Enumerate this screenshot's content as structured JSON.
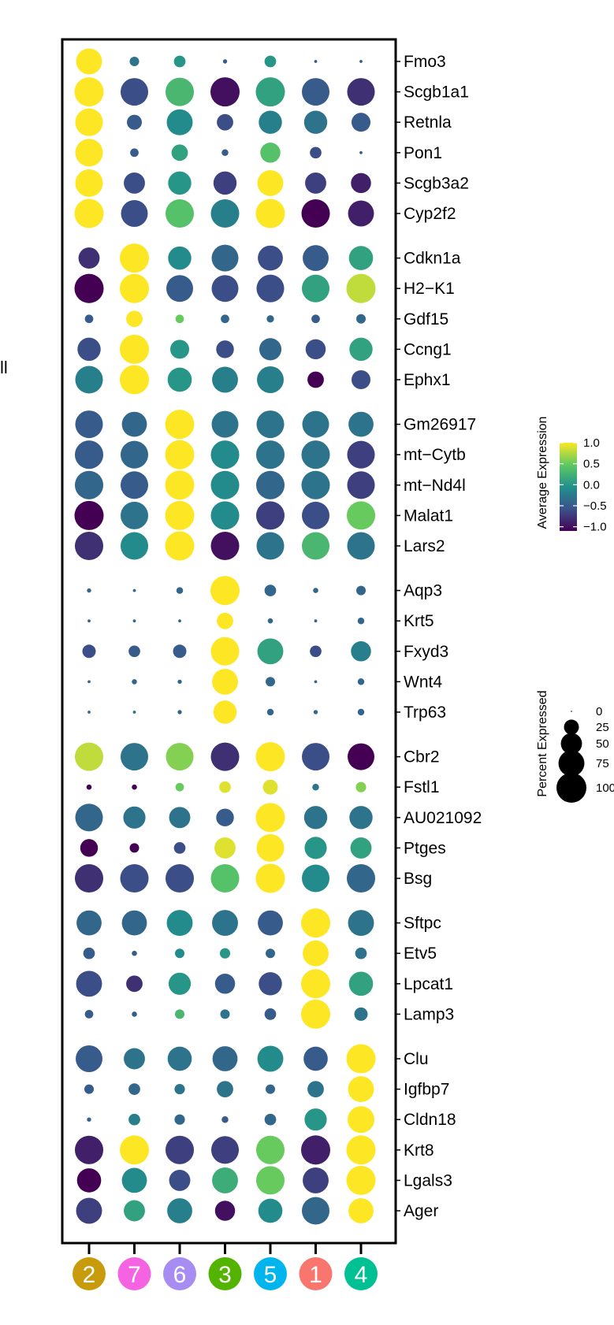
{
  "chart_data": {
    "type": "dotplot",
    "clusters": [
      {
        "label": "2",
        "color": "#c89b0c"
      },
      {
        "label": "7",
        "color": "#f563e3"
      },
      {
        "label": "6",
        "color": "#a78cf2"
      },
      {
        "label": "3",
        "color": "#53b400"
      },
      {
        "label": "5",
        "color": "#00b5ee"
      },
      {
        "label": "1",
        "color": "#f8766d"
      },
      {
        "label": "4",
        "color": "#00c094"
      }
    ],
    "genes": [
      "Fmo3",
      "Scgb1a1",
      "Retnla",
      "Pon1",
      "Scgb3a2",
      "Cyp2f2",
      "Cdkn1a",
      "H2−K1",
      "Gdf15",
      "Ccng1",
      "Ephx1",
      "Gm26917",
      "mt−Cytb",
      "mt−Nd4l",
      "Malat1",
      "Lars2",
      "Aqp3",
      "Krt5",
      "Fxyd3",
      "Wnt4",
      "Trp63",
      "Cbr2",
      "Fstl1",
      "AU021092",
      "Ptges",
      "Bsg",
      "Sftpc",
      "Etv5",
      "Lpcat1",
      "Lamp3",
      "Clu",
      "Igfbp7",
      "Cldn18",
      "Krt8",
      "Lgals3",
      "Ager"
    ],
    "groups": [
      6,
      5,
      5,
      5,
      5,
      4,
      6
    ],
    "avg_expression": [
      [
        1.0,
        -0.3,
        0.0,
        -0.5,
        0.0,
        -0.5,
        -0.5
      ],
      [
        1.0,
        -0.6,
        0.3,
        -1.0,
        0.1,
        -0.5,
        -0.8
      ],
      [
        1.0,
        -0.5,
        -0.1,
        -0.6,
        -0.2,
        -0.3,
        -0.5
      ],
      [
        1.0,
        -0.5,
        0.1,
        -0.5,
        0.4,
        -0.6,
        -0.5
      ],
      [
        1.0,
        -0.6,
        0.0,
        -0.7,
        1.0,
        -0.7,
        -0.9
      ],
      [
        1.0,
        -0.6,
        0.4,
        -0.2,
        1.0,
        -1.1,
        -0.9
      ],
      [
        -0.8,
        1.0,
        -0.1,
        -0.4,
        -0.6,
        -0.5,
        0.1
      ],
      [
        -1.1,
        1.0,
        -0.5,
        -0.6,
        -0.6,
        0.1,
        0.8
      ],
      [
        -0.5,
        1.0,
        0.5,
        -0.4,
        -0.4,
        -0.5,
        -0.4
      ],
      [
        -0.6,
        1.0,
        0.0,
        -0.6,
        -0.4,
        -0.6,
        0.1
      ],
      [
        -0.2,
        1.0,
        0.0,
        -0.2,
        -0.2,
        -1.1,
        -0.6
      ],
      [
        -0.5,
        -0.4,
        1.0,
        -0.3,
        -0.3,
        -0.3,
        -0.3
      ],
      [
        -0.5,
        -0.4,
        1.0,
        -0.1,
        -0.3,
        -0.3,
        -0.7
      ],
      [
        -0.4,
        -0.5,
        1.0,
        -0.1,
        -0.4,
        -0.3,
        -0.7
      ],
      [
        -1.1,
        -0.3,
        1.0,
        -0.1,
        -0.7,
        -0.6,
        0.5
      ],
      [
        -0.8,
        -0.1,
        1.0,
        -1.0,
        -0.3,
        0.3,
        -0.3
      ],
      [
        -0.4,
        -0.4,
        -0.4,
        1.0,
        -0.4,
        -0.4,
        -0.4
      ],
      [
        -0.4,
        -0.4,
        -0.4,
        1.0,
        -0.4,
        -0.4,
        -0.4
      ],
      [
        -0.6,
        -0.5,
        -0.5,
        1.0,
        0.1,
        -0.6,
        -0.2
      ],
      [
        -0.4,
        -0.4,
        -0.4,
        1.0,
        -0.4,
        -0.4,
        -0.4
      ],
      [
        -0.4,
        -0.4,
        -0.4,
        1.0,
        -0.4,
        -0.4,
        -0.4
      ],
      [
        0.8,
        -0.3,
        0.6,
        -0.8,
        1.0,
        -0.6,
        -1.1
      ],
      [
        -1.1,
        -1.1,
        0.5,
        0.9,
        0.9,
        -0.3,
        0.6
      ],
      [
        -0.4,
        -0.3,
        -0.3,
        -0.5,
        1.0,
        -0.3,
        -0.3
      ],
      [
        -1.1,
        -1.1,
        -0.6,
        0.9,
        1.0,
        0.0,
        0.1
      ],
      [
        -0.8,
        -0.6,
        -0.6,
        0.4,
        1.0,
        -0.1,
        -0.4
      ],
      [
        -0.4,
        -0.4,
        -0.1,
        -0.3,
        -0.5,
        1.0,
        -0.3
      ],
      [
        -0.5,
        -0.5,
        -0.1,
        0.0,
        -0.4,
        1.0,
        -0.3
      ],
      [
        -0.6,
        -0.8,
        0.0,
        -0.5,
        -0.6,
        1.0,
        0.1
      ],
      [
        -0.5,
        -0.5,
        0.3,
        -0.3,
        -0.5,
        1.0,
        -0.3
      ],
      [
        -0.5,
        -0.3,
        -0.3,
        -0.4,
        -0.1,
        -0.5,
        1.0
      ],
      [
        -0.5,
        -0.4,
        -0.3,
        -0.3,
        -0.4,
        -0.3,
        1.0
      ],
      [
        -0.4,
        -0.2,
        -0.4,
        -0.5,
        -0.4,
        0.0,
        1.0
      ],
      [
        -0.9,
        1.0,
        -0.7,
        -0.7,
        0.5,
        -0.9,
        1.0
      ],
      [
        -1.1,
        -0.1,
        -0.6,
        0.2,
        0.5,
        -0.7,
        1.0
      ],
      [
        -0.7,
        0.1,
        -0.2,
        -1.0,
        -0.1,
        -0.4,
        1.0
      ]
    ],
    "pct_expressed": [
      [
        75,
        10,
        15,
        2,
        15,
        1,
        1
      ],
      [
        95,
        85,
        90,
        95,
        95,
        85,
        85
      ],
      [
        85,
        25,
        75,
        30,
        60,
        60,
        40
      ],
      [
        85,
        8,
        30,
        5,
        45,
        15,
        1
      ],
      [
        85,
        50,
        60,
        60,
        75,
        50,
        45
      ],
      [
        95,
        80,
        90,
        90,
        95,
        90,
        75
      ],
      [
        50,
        95,
        60,
        80,
        70,
        75,
        65
      ],
      [
        95,
        95,
        80,
        80,
        85,
        85,
        95
      ],
      [
        8,
        30,
        8,
        8,
        6,
        8,
        10
      ],
      [
        60,
        95,
        40,
        35,
        55,
        45,
        60
      ],
      [
        85,
        95,
        65,
        75,
        80,
        30,
        40
      ],
      [
        85,
        70,
        95,
        80,
        85,
        80,
        70
      ],
      [
        90,
        85,
        95,
        90,
        90,
        90,
        85
      ],
      [
        90,
        85,
        95,
        90,
        90,
        90,
        85
      ],
      [
        95,
        85,
        95,
        90,
        90,
        85,
        90
      ],
      [
        90,
        85,
        95,
        90,
        85,
        85,
        85
      ],
      [
        2,
        1,
        5,
        95,
        15,
        3,
        10
      ],
      [
        1,
        1,
        1,
        30,
        3,
        1,
        5
      ],
      [
        20,
        15,
        20,
        90,
        75,
        15,
        45
      ],
      [
        1,
        3,
        2,
        75,
        10,
        1,
        5
      ],
      [
        1,
        1,
        2,
        60,
        5,
        2,
        5
      ],
      [
        90,
        85,
        85,
        90,
        95,
        85,
        80
      ],
      [
        3,
        3,
        8,
        15,
        25,
        5,
        12
      ],
      [
        85,
        55,
        50,
        35,
        95,
        60,
        60
      ],
      [
        35,
        10,
        15,
        50,
        85,
        55,
        50
      ],
      [
        90,
        90,
        90,
        90,
        95,
        85,
        90
      ],
      [
        70,
        70,
        75,
        75,
        70,
        95,
        75
      ],
      [
        15,
        3,
        10,
        12,
        10,
        75,
        15
      ],
      [
        75,
        30,
        55,
        45,
        60,
        95,
        65
      ],
      [
        8,
        3,
        10,
        10,
        15,
        95,
        20
      ],
      [
        80,
        50,
        65,
        70,
        75,
        65,
        95
      ],
      [
        10,
        15,
        12,
        30,
        10,
        30,
        75
      ],
      [
        2,
        15,
        12,
        5,
        15,
        55,
        80
      ],
      [
        90,
        95,
        90,
        85,
        90,
        95,
        95
      ],
      [
        65,
        70,
        50,
        75,
        90,
        75,
        95
      ],
      [
        75,
        50,
        70,
        45,
        65,
        85,
        70
      ]
    ],
    "color_legend": {
      "title": "Average Expression",
      "ticks": [
        "1.0",
        "0.5",
        "0.0",
        "−0.5",
        "−1.0"
      ],
      "tick_values": [
        1.0,
        0.5,
        0.0,
        -0.5,
        -1.0
      ],
      "palette": [
        "#440154",
        "#3b528b",
        "#21918c",
        "#5ec962",
        "#fde725"
      ],
      "range": [
        -1.1,
        1.0
      ]
    },
    "size_legend": {
      "title": "Percent Expressed",
      "labels": [
        "0",
        "25",
        "50",
        "75",
        "100"
      ],
      "values": [
        0,
        25,
        50,
        75,
        100
      ]
    },
    "left_edge_text": "ll"
  }
}
